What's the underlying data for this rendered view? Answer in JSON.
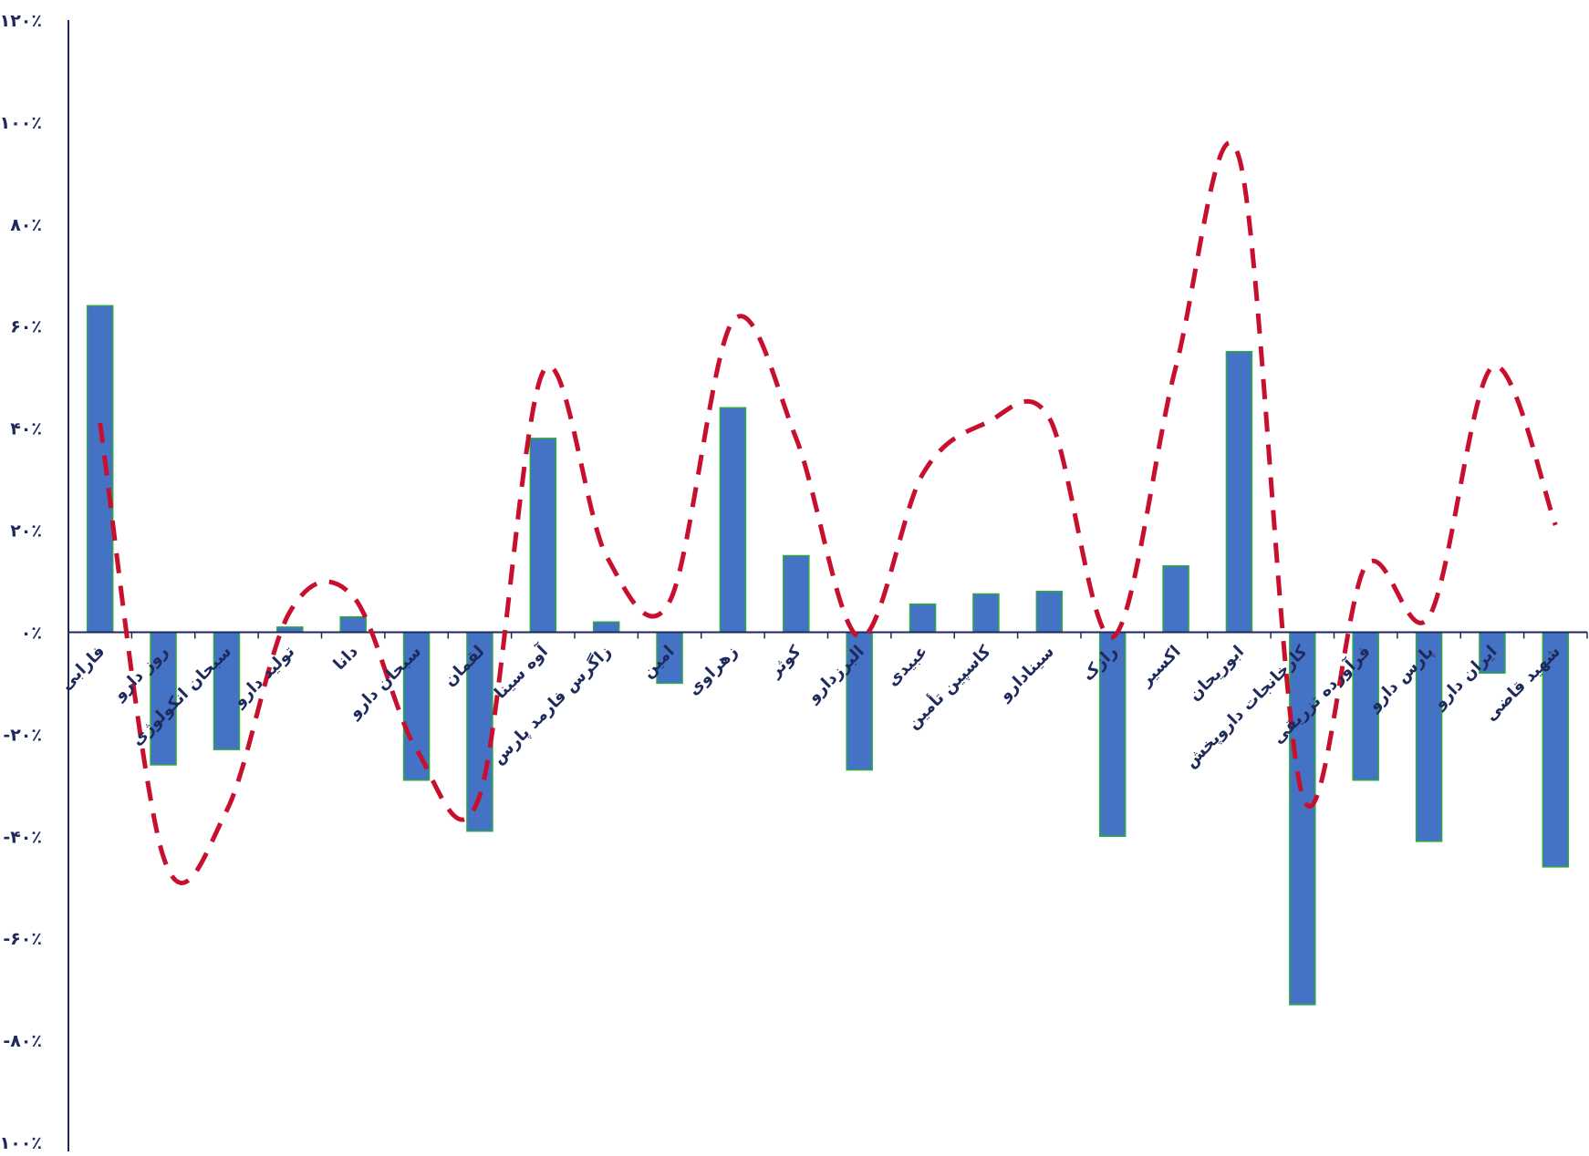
{
  "chart_data": {
    "type": "bar",
    "title": "",
    "xlabel": "",
    "ylabel": "",
    "ylim": [
      -100,
      120
    ],
    "y_ticks": [
      "۱۲۰٪",
      "۱۰۰٪",
      "۸۰٪",
      "۶۰٪",
      "۴۰٪",
      "۲۰٪",
      "۰٪",
      "-۲۰٪",
      "-۴۰٪",
      "-۶۰٪",
      "-۸۰٪",
      "-۱۰۰٪"
    ],
    "y_tick_values": [
      120,
      100,
      80,
      60,
      40,
      20,
      0,
      -20,
      -40,
      -60,
      -80,
      -100
    ],
    "categories": [
      "فارابی",
      "روز دارو",
      "سبحان انکولوژی",
      "تولید دارو",
      "دانا",
      "سبحان دارو",
      "لقمان",
      "آوه سینا",
      "زاگرس فارمد پارس",
      "امین",
      "زهراوی",
      "کوثر",
      "البرزدارو",
      "عبیدی",
      "کاسپین تأمین",
      "سینادارو",
      "رازک",
      "اکسیر",
      "ابوریحان",
      "کارخانجات داروپخش",
      "فرآورده تزریقی",
      "پارس دارو",
      "ایران دارو",
      "شهید قاضی"
    ],
    "grid": false,
    "series": [
      {
        "type": "bar",
        "color": "#4472C4",
        "edge_color": "#2EAA3F",
        "values": [
          64,
          -26,
          -23,
          1,
          3,
          -29,
          -39,
          38,
          2,
          -10,
          44,
          15,
          -27,
          5.5,
          7.5,
          8,
          -40,
          13,
          55,
          -73,
          -29,
          -41,
          -8,
          -46
        ]
      },
      {
        "type": "line",
        "style": "dashed",
        "color": "#C8102E",
        "values": [
          41,
          -44,
          -35,
          4,
          7,
          -23,
          -32,
          51,
          15,
          6,
          61,
          38,
          -1,
          31,
          41,
          42,
          -1,
          52,
          93,
          -32,
          13,
          3,
          52,
          21
        ]
      }
    ]
  }
}
